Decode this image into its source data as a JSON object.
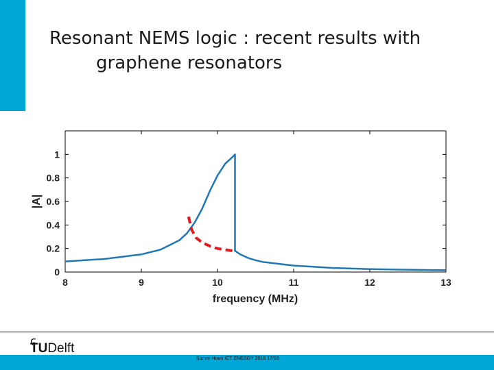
{
  "slide": {
    "title_line1": "Resonant NEMS logic : recent results with",
    "title_line2": "graphene resonators",
    "footer": "Samer Houri ICT ENERGY 2016 17/16",
    "logo": {
      "text_bold": "TU",
      "text_regular": "Delft",
      "icon": "tudelft-flame-icon"
    },
    "accent_color": "#00a6d6"
  },
  "chart_data": {
    "type": "line",
    "xlabel": "frequency (MHz)",
    "ylabel": "|A|",
    "xlim": [
      8,
      13
    ],
    "ylim": [
      0,
      1.2
    ],
    "xticks": [
      "8",
      "9",
      "10",
      "11",
      "12",
      "13"
    ],
    "yticks": [
      "0",
      "0.2",
      "0.4",
      "0.6",
      "0.8",
      "1"
    ],
    "grid": false,
    "series": [
      {
        "color": "#1f77b4",
        "style": "solid",
        "x": [
          8.0,
          8.25,
          8.5,
          8.75,
          9.0,
          9.25,
          9.5,
          9.6,
          9.7,
          9.8,
          9.9,
          10.0,
          10.1,
          10.2,
          10.23,
          10.23,
          10.3,
          10.4,
          10.5,
          10.6,
          10.8,
          11.0,
          11.25,
          11.5,
          12.0,
          12.5,
          13.0
        ],
        "y": [
          0.09,
          0.1,
          0.11,
          0.13,
          0.15,
          0.19,
          0.27,
          0.33,
          0.42,
          0.54,
          0.69,
          0.82,
          0.92,
          0.98,
          1.0,
          0.18,
          0.15,
          0.12,
          0.1,
          0.085,
          0.07,
          0.055,
          0.045,
          0.035,
          0.025,
          0.02,
          0.015
        ]
      },
      {
        "color": "#e41a1c",
        "style": "dashed",
        "x": [
          9.62,
          9.66,
          9.72,
          9.8,
          9.9,
          10.0,
          10.1,
          10.2,
          10.23
        ],
        "y": [
          0.47,
          0.36,
          0.29,
          0.25,
          0.22,
          0.2,
          0.19,
          0.18,
          0.18
        ]
      }
    ]
  }
}
